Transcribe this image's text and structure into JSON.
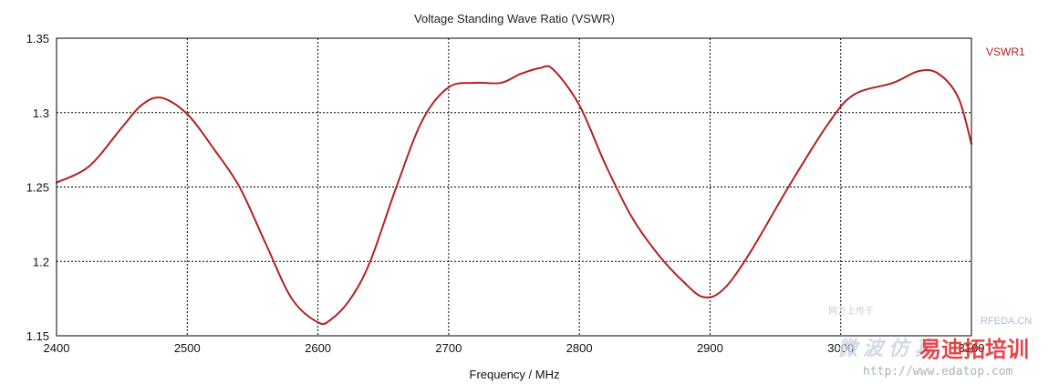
{
  "chart_data": {
    "type": "line",
    "title": "Voltage Standing Wave Ratio (VSWR)",
    "xlabel": "Frequency / MHz",
    "ylabel": "",
    "xlim": [
      2400,
      3100
    ],
    "ylim": [
      1.15,
      1.35
    ],
    "x_ticks": [
      "2400",
      "2500",
      "2600",
      "2700",
      "2800",
      "2900",
      "3000",
      "3100"
    ],
    "y_ticks": [
      "1.15",
      "1.2",
      "1.25",
      "1.3",
      "1.35"
    ],
    "grid": true,
    "legend_position": "top-right",
    "series": [
      {
        "name": "VSWR1",
        "color": "#b22222",
        "x": [
          2400,
          2425,
          2450,
          2465,
          2480,
          2500,
          2520,
          2540,
          2560,
          2580,
          2600,
          2610,
          2625,
          2640,
          2660,
          2680,
          2700,
          2720,
          2740,
          2755,
          2770,
          2780,
          2800,
          2820,
          2840,
          2860,
          2880,
          2895,
          2910,
          2930,
          2960,
          2990,
          3010,
          3040,
          3060,
          3075,
          3090,
          3100
        ],
        "y": [
          1.253,
          1.264,
          1.29,
          1.305,
          1.31,
          1.299,
          1.276,
          1.25,
          1.212,
          1.175,
          1.159,
          1.161,
          1.175,
          1.2,
          1.25,
          1.295,
          1.317,
          1.32,
          1.32,
          1.326,
          1.33,
          1.329,
          1.305,
          1.265,
          1.23,
          1.205,
          1.186,
          1.176,
          1.181,
          1.205,
          1.25,
          1.292,
          1.312,
          1.32,
          1.328,
          1.326,
          1.31,
          1.279
        ]
      }
    ]
  },
  "watermark": {
    "small": "网方上传于",
    "brand": "RFEDA.CN",
    "chars": "微 波 仿 真",
    "url": "http://www.edatop.com",
    "logo": "易迪拓培训"
  }
}
